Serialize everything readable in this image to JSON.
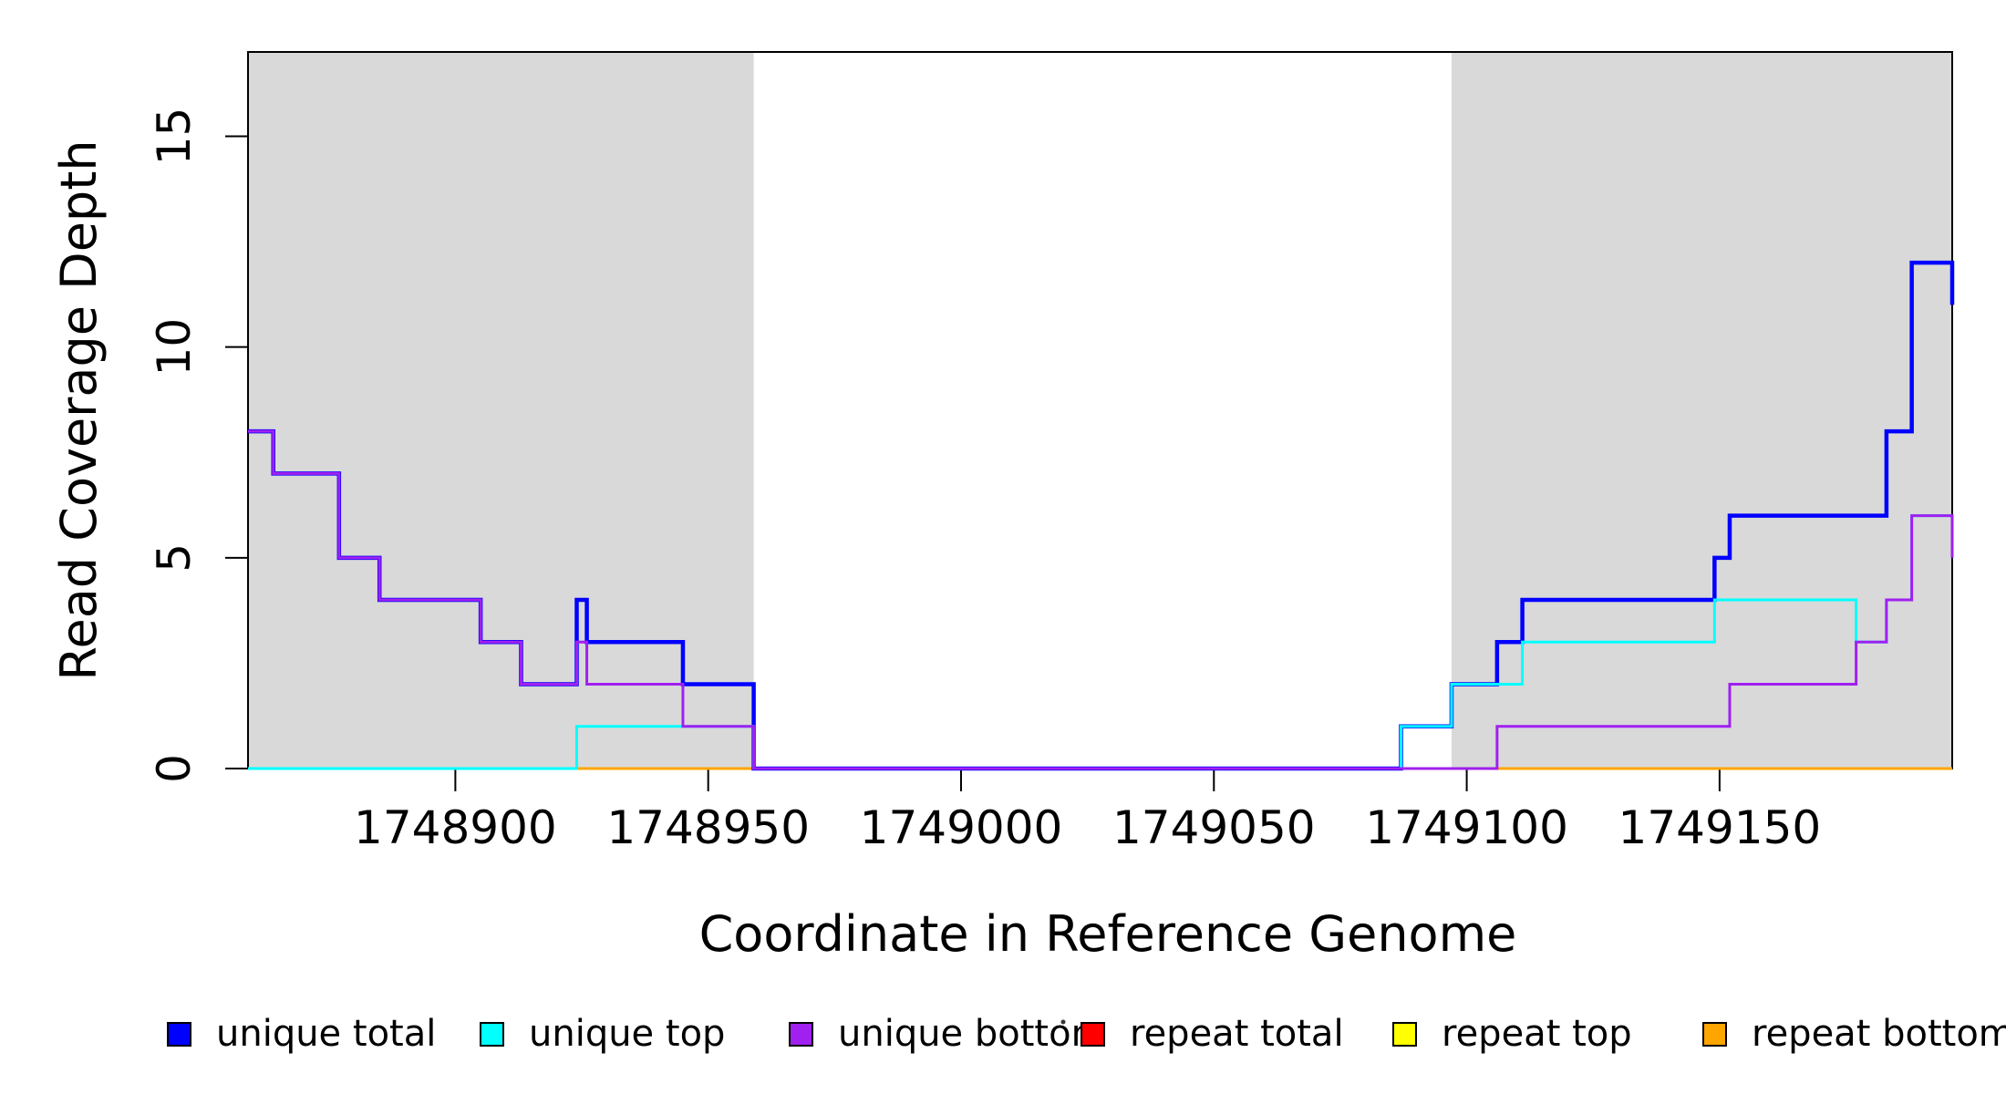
{
  "chart_data": {
    "type": "line",
    "subtype": "step-coverage-plot",
    "title": "",
    "xlabel": "Coordinate in Reference Genome",
    "ylabel": "Read Coverage Depth",
    "xlim": [
      1748859,
      1749196
    ],
    "ylim": [
      0,
      17
    ],
    "grid": false,
    "background_color": "#ffffff",
    "masked_region_color": "#d9d9d9",
    "axis_color": "#000000",
    "x_ticks": [
      {
        "value": 1748900,
        "label": "1748900"
      },
      {
        "value": 1748950,
        "label": "1748950"
      },
      {
        "value": 1749000,
        "label": "1749000"
      },
      {
        "value": 1749050,
        "label": "1749050"
      },
      {
        "value": 1749100,
        "label": "1749100"
      },
      {
        "value": 1749150,
        "label": "1749150"
      }
    ],
    "y_ticks": [
      {
        "value": 0,
        "label": "0"
      },
      {
        "value": 5,
        "label": "5"
      },
      {
        "value": 10,
        "label": "10"
      },
      {
        "value": 15,
        "label": "15"
      }
    ],
    "masked_regions": [
      {
        "from": 1748859,
        "to": 1748959
      },
      {
        "from": 1749097,
        "to": 1749196
      }
    ],
    "series": [
      {
        "name": "repeat total",
        "color": "#FF0000",
        "width": 3,
        "points": [
          {
            "x": 1748859,
            "y": 0
          }
        ]
      },
      {
        "name": "repeat top",
        "color": "#FFFF00",
        "width": 3,
        "points": [
          {
            "x": 1748859,
            "y": 0
          }
        ]
      },
      {
        "name": "repeat bottom",
        "color": "#FFA500",
        "width": 3,
        "points": [
          {
            "x": 1748859,
            "y": 0
          }
        ]
      },
      {
        "name": "unique total",
        "color": "#0000FF",
        "width": 4.5,
        "points": [
          {
            "x": 1748859,
            "y": 8
          },
          {
            "x": 1748864,
            "y": 7
          },
          {
            "x": 1748877,
            "y": 5
          },
          {
            "x": 1748885,
            "y": 4
          },
          {
            "x": 1748905,
            "y": 3
          },
          {
            "x": 1748913,
            "y": 2
          },
          {
            "x": 1748924,
            "y": 4
          },
          {
            "x": 1748926,
            "y": 3
          },
          {
            "x": 1748945,
            "y": 2
          },
          {
            "x": 1748959,
            "y": 0
          },
          {
            "x": 1749087,
            "y": 1
          },
          {
            "x": 1749097,
            "y": 2
          },
          {
            "x": 1749106,
            "y": 3
          },
          {
            "x": 1749111,
            "y": 4
          },
          {
            "x": 1749149,
            "y": 5
          },
          {
            "x": 1749152,
            "y": 6
          },
          {
            "x": 1749183,
            "y": 8
          },
          {
            "x": 1749188,
            "y": 12
          },
          {
            "x": 1749196,
            "y": 11
          }
        ]
      },
      {
        "name": "unique top",
        "color": "#00FFFF",
        "width": 3,
        "points": [
          {
            "x": 1748859,
            "y": 0
          },
          {
            "x": 1748924,
            "y": 1
          },
          {
            "x": 1748959,
            "y": 0
          },
          {
            "x": 1749087,
            "y": 1
          },
          {
            "x": 1749097,
            "y": 2
          },
          {
            "x": 1749111,
            "y": 3
          },
          {
            "x": 1749149,
            "y": 4
          },
          {
            "x": 1749177,
            "y": 3
          },
          {
            "x": 1749183,
            "y": 4
          },
          {
            "x": 1749188,
            "y": 6
          }
        ]
      },
      {
        "name": "unique bottom",
        "color": "#A020F0",
        "width": 3,
        "points": [
          {
            "x": 1748859,
            "y": 8
          },
          {
            "x": 1748864,
            "y": 7
          },
          {
            "x": 1748877,
            "y": 5
          },
          {
            "x": 1748885,
            "y": 4
          },
          {
            "x": 1748905,
            "y": 3
          },
          {
            "x": 1748913,
            "y": 2
          },
          {
            "x": 1748924,
            "y": 3
          },
          {
            "x": 1748926,
            "y": 2
          },
          {
            "x": 1748945,
            "y": 1
          },
          {
            "x": 1748959,
            "y": 0
          },
          {
            "x": 1749106,
            "y": 1
          },
          {
            "x": 1749152,
            "y": 2
          },
          {
            "x": 1749177,
            "y": 3
          },
          {
            "x": 1749183,
            "y": 4
          },
          {
            "x": 1749188,
            "y": 6
          },
          {
            "x": 1749196,
            "y": 5
          }
        ]
      }
    ],
    "legend_position": "bottom",
    "legend": [
      {
        "label": "unique total",
        "color": "#0000FF"
      },
      {
        "label": "unique top",
        "color": "#00FFFF"
      },
      {
        "label": "unique bottom",
        "color": "#A020F0"
      },
      {
        "label": "repeat total",
        "color": "#FF0000"
      },
      {
        "label": "repeat top",
        "color": "#FFFF00"
      },
      {
        "label": "repeat bottom",
        "color": "#FFA500"
      }
    ]
  }
}
